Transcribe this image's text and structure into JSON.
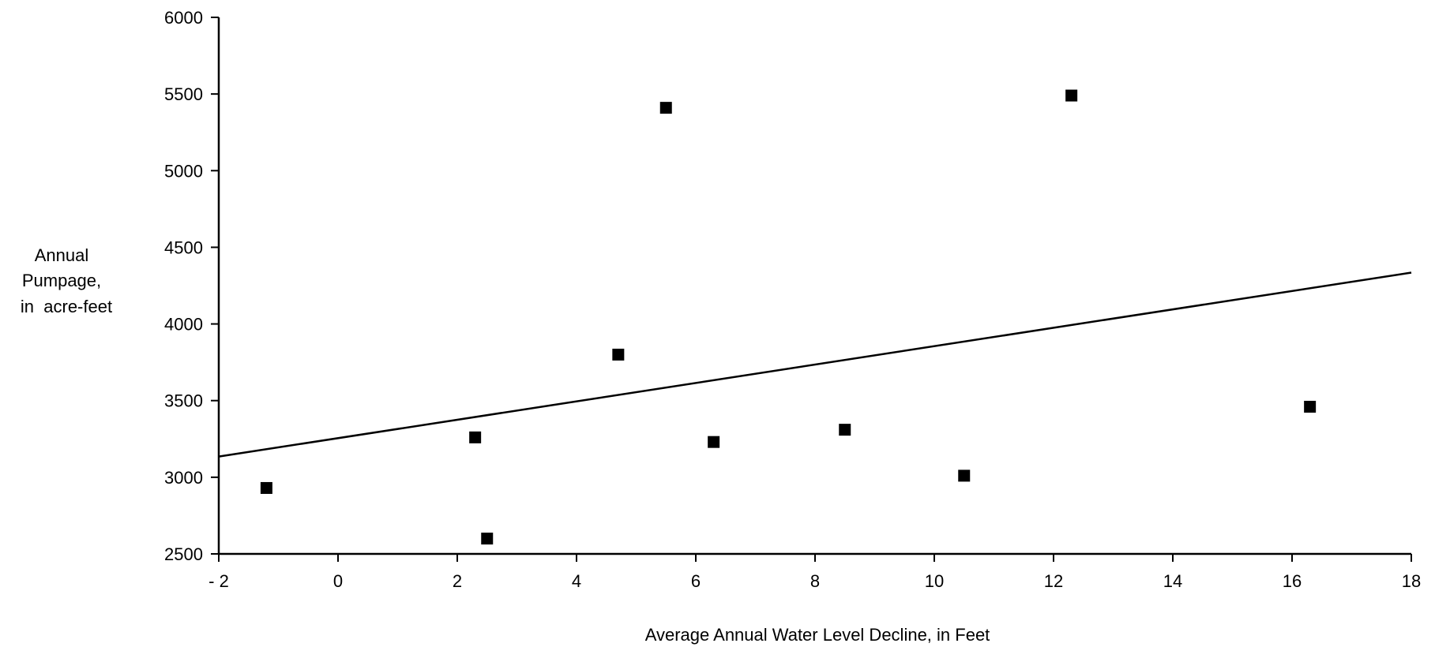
{
  "chart_data": {
    "type": "scatter",
    "title": "",
    "xlabel": "Average Annual Water Level Decline, in Feet",
    "ylabel_lines": [
      "Annual",
      "Pumpage,",
      "in  acre-feet"
    ],
    "xlim": [
      -2,
      18
    ],
    "ylim": [
      2500,
      6000
    ],
    "x_ticks": [
      -2,
      0,
      2,
      4,
      6,
      8,
      10,
      12,
      14,
      16,
      18
    ],
    "x_tick_labels": [
      "- 2",
      "0",
      "2",
      "4",
      "6",
      "8",
      "10",
      "12",
      "14",
      "16",
      "18"
    ],
    "y_ticks": [
      2500,
      3000,
      3500,
      4000,
      4500,
      5000,
      5500,
      6000
    ],
    "y_tick_labels": [
      "2500",
      "3000",
      "3500",
      "4000",
      "4500",
      "5000",
      "5500",
      "6000"
    ],
    "grid": false,
    "points": [
      {
        "x": -1.2,
        "y": 2930
      },
      {
        "x": 2.3,
        "y": 3260
      },
      {
        "x": 2.5,
        "y": 2600
      },
      {
        "x": 4.7,
        "y": 3800
      },
      {
        "x": 5.5,
        "y": 5410
      },
      {
        "x": 6.3,
        "y": 3230
      },
      {
        "x": 8.5,
        "y": 3310
      },
      {
        "x": 10.5,
        "y": 3010
      },
      {
        "x": 12.3,
        "y": 5490
      },
      {
        "x": 16.3,
        "y": 3460
      }
    ],
    "trendline": {
      "x": [
        -2,
        18
      ],
      "y": [
        3135,
        4335
      ]
    },
    "colors": {
      "marker": "#000000",
      "line": "#000000"
    }
  }
}
